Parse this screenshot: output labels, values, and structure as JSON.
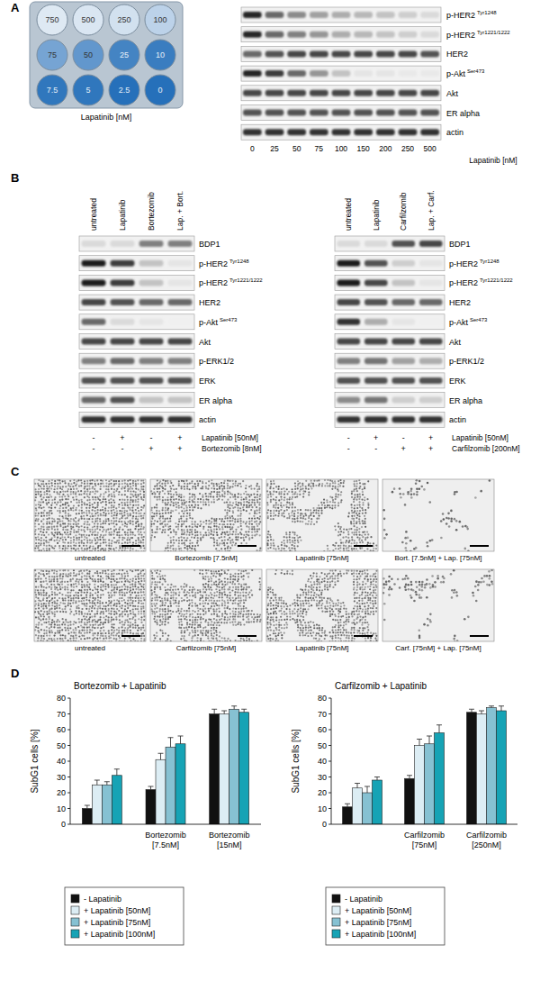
{
  "panel_labels": [
    "A",
    "B",
    "C",
    "D"
  ],
  "panel_a": {
    "plate": {
      "wells": [
        750,
        500,
        250,
        100,
        75,
        50,
        25,
        10,
        7.5,
        5,
        2.5,
        0
      ],
      "stain": [
        0.08,
        0.1,
        0.14,
        0.25,
        0.6,
        0.7,
        0.85,
        0.9,
        0.95,
        0.95,
        1,
        1
      ],
      "caption": "Lapatinib [nM]"
    },
    "blot": {
      "lanes": [
        0,
        25,
        50,
        75,
        100,
        150,
        200,
        250,
        500
      ],
      "lane_title": "Lapatinib [nM]",
      "rows": [
        {
          "name": "p-HER2",
          "site": "Tyr1248",
          "bands": [
            0.9,
            0.6,
            0.45,
            0.35,
            0.3,
            0.25,
            0.2,
            0.15,
            0.1
          ]
        },
        {
          "name": "p-HER2",
          "site": "Tyr1221/1222",
          "bands": [
            0.9,
            0.6,
            0.5,
            0.4,
            0.3,
            0.25,
            0.2,
            0.15,
            0.1
          ]
        },
        {
          "name": "HER2",
          "bands": [
            0.6,
            0.7,
            0.75,
            0.75,
            0.75,
            0.75,
            0.75,
            0.75,
            0.7
          ]
        },
        {
          "name": "p-Akt",
          "site": "Ser473",
          "bands": [
            0.9,
            0.8,
            0.6,
            0.4,
            0.2,
            0.05,
            0.05,
            0.03,
            0.03
          ]
        },
        {
          "name": "Akt",
          "bands": [
            0.75,
            0.75,
            0.75,
            0.75,
            0.75,
            0.75,
            0.75,
            0.75,
            0.75
          ]
        },
        {
          "name": "ER alpha",
          "bands": [
            0.7,
            0.7,
            0.7,
            0.7,
            0.7,
            0.7,
            0.7,
            0.7,
            0.7
          ]
        },
        {
          "name": "actin",
          "bands": [
            0.85,
            0.85,
            0.85,
            0.85,
            0.85,
            0.85,
            0.85,
            0.85,
            0.85
          ]
        }
      ]
    }
  },
  "panel_b": {
    "blots": [
      {
        "lanes": [
          "untreated",
          "Lapatinib",
          "Bortezomib",
          "Lap. + Bort."
        ],
        "rows": [
          {
            "name": "BDP1",
            "bands": [
              0.1,
              0.1,
              0.5,
              0.5
            ]
          },
          {
            "name": "p-HER2",
            "site": "Tyr1248",
            "bands": [
              0.95,
              0.8,
              0.2,
              0.05
            ]
          },
          {
            "name": "p-HER2",
            "site": "Tyr1221/1222",
            "bands": [
              0.95,
              0.8,
              0.2,
              0.05
            ]
          },
          {
            "name": "HER2",
            "bands": [
              0.75,
              0.7,
              0.6,
              0.6
            ]
          },
          {
            "name": "p-Akt",
            "site": "Ser473",
            "bands": [
              0.6,
              0.1,
              0.05,
              0.0
            ]
          },
          {
            "name": "Akt",
            "bands": [
              0.75,
              0.75,
              0.75,
              0.75
            ]
          },
          {
            "name": "p-ERK1/2",
            "bands": [
              0.5,
              0.6,
              0.5,
              0.5
            ]
          },
          {
            "name": "ERK",
            "bands": [
              0.7,
              0.7,
              0.7,
              0.7
            ]
          },
          {
            "name": "ER alpha",
            "bands": [
              0.6,
              0.7,
              0.2,
              0.2
            ]
          },
          {
            "name": "actin",
            "bands": [
              0.85,
              0.85,
              0.85,
              0.85
            ]
          }
        ],
        "treatments": [
          {
            "label": "Lapatinib [50nM]",
            "signs": [
              "-",
              "+",
              "-",
              "+"
            ]
          },
          {
            "label": "Bortezomib [8nM]",
            "signs": [
              "-",
              "-",
              "+",
              "+"
            ]
          }
        ]
      },
      {
        "lanes": [
          "untreated",
          "Lapatinib",
          "Carfilzomib",
          "Lap. + Carf."
        ],
        "rows": [
          {
            "name": "BDP1",
            "bands": [
              0.1,
              0.1,
              0.7,
              0.75
            ]
          },
          {
            "name": "p-HER2",
            "site": "Tyr1248",
            "bands": [
              0.95,
              0.7,
              0.15,
              0.05
            ]
          },
          {
            "name": "p-HER2",
            "site": "Tyr1221/1222",
            "bands": [
              0.95,
              0.75,
              0.2,
              0.05
            ]
          },
          {
            "name": "HER2",
            "bands": [
              0.75,
              0.7,
              0.6,
              0.6
            ]
          },
          {
            "name": "p-Akt",
            "site": "Ser473",
            "bands": [
              0.85,
              0.3,
              0.05,
              0.0
            ]
          },
          {
            "name": "Akt",
            "bands": [
              0.75,
              0.75,
              0.75,
              0.75
            ]
          },
          {
            "name": "p-ERK1/2",
            "bands": [
              0.5,
              0.55,
              0.35,
              0.3
            ]
          },
          {
            "name": "ERK",
            "bands": [
              0.7,
              0.7,
              0.7,
              0.7
            ]
          },
          {
            "name": "ER alpha",
            "bands": [
              0.45,
              0.55,
              0.15,
              0.15
            ]
          },
          {
            "name": "actin",
            "bands": [
              0.85,
              0.85,
              0.85,
              0.85
            ]
          }
        ],
        "treatments": [
          {
            "label": "Lapatinib [50nM]",
            "signs": [
              "-",
              "+",
              "-",
              "+"
            ]
          },
          {
            "label": "Carfilzomib [200nM]",
            "signs": [
              "-",
              "-",
              "+",
              "+"
            ]
          }
        ]
      }
    ]
  },
  "panel_c": {
    "rows": [
      [
        {
          "caption": "untreated",
          "coverage": 0.82
        },
        {
          "caption": "Bortezomib [7.5nM]",
          "coverage": 0.62
        },
        {
          "caption": "Lapatinib [75nM]",
          "coverage": 0.55
        },
        {
          "caption": "Bort. [7.5nM] + Lap. [75nM]",
          "coverage": 0.18
        }
      ],
      [
        {
          "caption": "untreated",
          "coverage": 0.82
        },
        {
          "caption": "Carfilzomib [75nM]",
          "coverage": 0.6
        },
        {
          "caption": "Lapatinib [75nM]",
          "coverage": 0.55
        },
        {
          "caption": "Carf. [75nM] + Lap. [75nM]",
          "coverage": 0.2
        }
      ]
    ]
  },
  "chart_data": [
    {
      "type": "bar",
      "title": "Bortezomib + Lapatinib",
      "ylabel": "SubG1 cells [%]",
      "categories": [
        null,
        "Bortezomib [7.5nM]",
        "Bortezomib [15nM]"
      ],
      "ylim": [
        0,
        80
      ],
      "yticks": [
        0,
        10,
        20,
        30,
        40,
        50,
        60,
        70,
        80
      ],
      "grid": false,
      "legend": "bottom",
      "series": [
        {
          "name": "- Lapatinib",
          "color": "#111111",
          "values": [
            10,
            22,
            70
          ],
          "errors": [
            2,
            2,
            3
          ]
        },
        {
          "name": "+ Lapatinib [50nM]",
          "color": "#dcedf4",
          "values": [
            25,
            41,
            70
          ],
          "errors": [
            3,
            4,
            2
          ]
        },
        {
          "name": "+ Lapatinib [75nM]",
          "color": "#86c1d2",
          "values": [
            25,
            49,
            73
          ],
          "errors": [
            2,
            6,
            2
          ]
        },
        {
          "name": "+ Lapatinib [100nM]",
          "color": "#16a3b5",
          "values": [
            31,
            51,
            71
          ],
          "errors": [
            4,
            5,
            2
          ]
        }
      ]
    },
    {
      "type": "bar",
      "title": "Carfilzomib + Lapatinib",
      "ylabel": "SubG1 cells [%]",
      "categories": [
        null,
        "Carfilzomib [75nM]",
        "Carfilzomib [250nM]"
      ],
      "ylim": [
        0,
        80
      ],
      "yticks": [
        0,
        10,
        20,
        30,
        40,
        50,
        60,
        70,
        80
      ],
      "grid": false,
      "legend": "bottom",
      "series": [
        {
          "name": "- Lapatinib",
          "color": "#111111",
          "values": [
            11,
            29,
            71
          ],
          "errors": [
            2,
            2,
            2
          ]
        },
        {
          "name": "+ Lapatinib [50nM]",
          "color": "#dcedf4",
          "values": [
            23,
            50,
            70
          ],
          "errors": [
            3,
            4,
            2
          ]
        },
        {
          "name": "+ Lapatinib [75nM]",
          "color": "#86c1d2",
          "values": [
            20,
            51,
            74
          ],
          "errors": [
            4,
            5,
            1
          ]
        },
        {
          "name": "+ Lapatinib [100nM]",
          "color": "#16a3b5",
          "values": [
            28,
            58,
            72
          ],
          "errors": [
            2,
            5,
            3
          ]
        }
      ]
    }
  ]
}
